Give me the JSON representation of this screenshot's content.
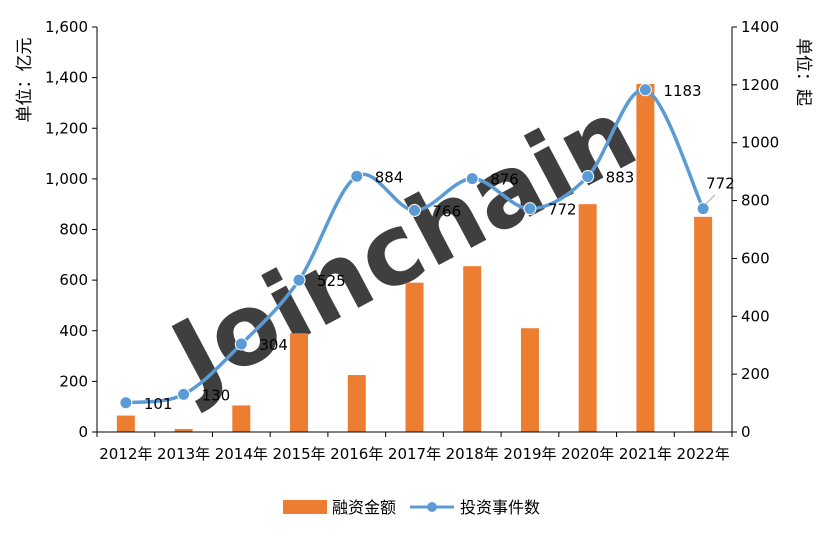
{
  "chart_data": {
    "type": "bar+line",
    "categories": [
      "2012年",
      "2013年",
      "2014年",
      "2015年",
      "2016年",
      "2017年",
      "2018年",
      "2019年",
      "2020年",
      "2021年",
      "2022年"
    ],
    "series": [
      {
        "name": "融资金额",
        "type": "bar",
        "axis": "left",
        "color": "#ED7D31",
        "values": [
          65,
          12,
          105,
          390,
          225,
          590,
          655,
          410,
          900,
          1375,
          850
        ]
      },
      {
        "name": "投资事件数",
        "type": "line",
        "axis": "right",
        "color": "#5B9BD5",
        "values": [
          101,
          130,
          304,
          525,
          884,
          766,
          876,
          772,
          883,
          1183,
          772
        ],
        "labels": [
          "101",
          "130",
          "304",
          "525",
          "884",
          "766",
          "876",
          "772",
          "883",
          "1183",
          "772"
        ]
      }
    ],
    "y_left": {
      "label": "单位：亿元",
      "range": [
        0,
        1600
      ],
      "ticks": [
        "0",
        "200",
        "400",
        "600",
        "800",
        "1,000",
        "1,200",
        "1,400",
        "1,600"
      ]
    },
    "y_right": {
      "label": "单位：起",
      "range": [
        0,
        1400
      ],
      "ticks": [
        "0",
        "200",
        "400",
        "600",
        "800",
        "1000",
        "1200",
        "1400"
      ]
    },
    "grid": false,
    "legend_position": "bottom",
    "watermark": "Joinchain"
  }
}
